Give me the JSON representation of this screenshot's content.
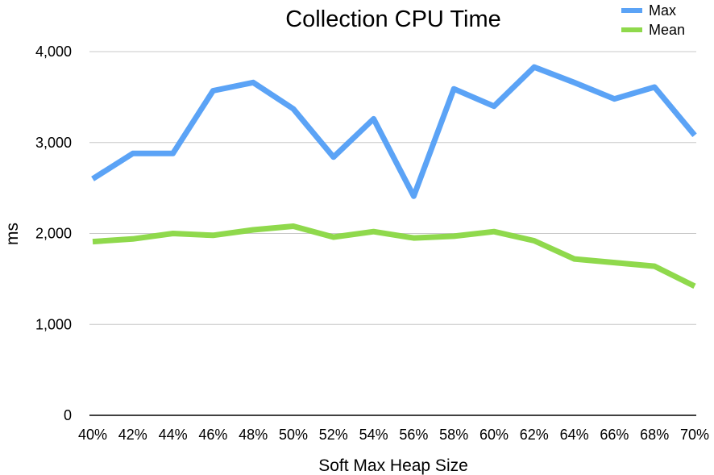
{
  "chart_data": {
    "type": "line",
    "title": "Collection CPU Time",
    "xlabel": "Soft Max Heap Size",
    "ylabel": "ms",
    "categories": [
      "40%",
      "42%",
      "44%",
      "46%",
      "48%",
      "50%",
      "52%",
      "54%",
      "56%",
      "58%",
      "60%",
      "62%",
      "64%",
      "66%",
      "68%",
      "70%"
    ],
    "ylim": [
      0,
      4000
    ],
    "yticks": [
      0,
      1000,
      2000,
      3000,
      4000
    ],
    "ytick_labels": [
      "0",
      "1,000",
      "2,000",
      "3,000",
      "4,000"
    ],
    "grid": true,
    "legend_position": "top-right",
    "series": [
      {
        "name": "Max",
        "color": "#5ba3f6",
        "values": [
          2600,
          2880,
          2880,
          3570,
          3660,
          3370,
          2840,
          3260,
          2410,
          3590,
          3400,
          3830,
          3660,
          3480,
          3610,
          3080
        ]
      },
      {
        "name": "Mean",
        "color": "#8fd94c",
        "values": [
          1910,
          1940,
          2000,
          1980,
          2040,
          2080,
          1960,
          2020,
          1950,
          1970,
          2020,
          1920,
          1720,
          1680,
          1640,
          1420
        ]
      }
    ]
  }
}
